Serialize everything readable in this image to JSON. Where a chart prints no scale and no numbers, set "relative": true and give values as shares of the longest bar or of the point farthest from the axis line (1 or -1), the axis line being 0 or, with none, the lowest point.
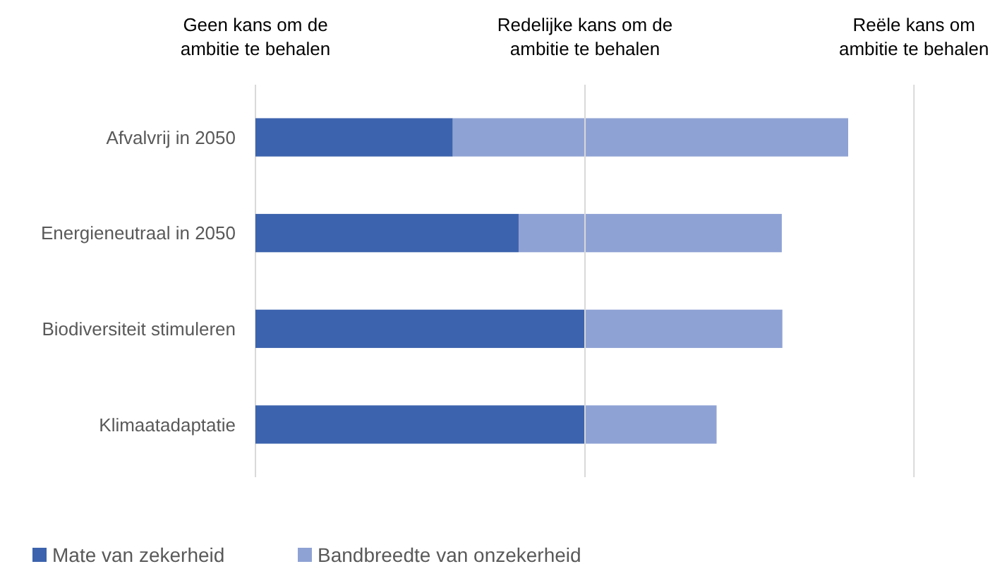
{
  "chart_data": {
    "type": "bar",
    "orientation": "horizontal",
    "stacked": true,
    "relative": true,
    "categories": [
      "Afvalvrij in 2050",
      "Energieneutraal in 2050",
      "Biodiversiteit stimuleren",
      "Klimaatadaptatie"
    ],
    "series": [
      {
        "name": "Mate van zekerheid",
        "color": "#3c63ad",
        "values": [
          0.333,
          0.444,
          0.556,
          0.556
        ]
      },
      {
        "name": "Bandbreedte van onzekerheid",
        "color": "#8fa2d4",
        "values": [
          0.667,
          0.444,
          0.333,
          0.222
        ]
      }
    ],
    "annotations": [
      "Geen kans om de\nambitie te behalen"
    ],
    "ref_lines": [
      {
        "axis": "x",
        "value": 0.556,
        "label": "Redelijke kans om de\nambitie te behalen"
      },
      {
        "axis": "x",
        "value": 1.111,
        "label": "Reële kans om\nambitie te behalen"
      }
    ],
    "legend": "bottom left"
  }
}
